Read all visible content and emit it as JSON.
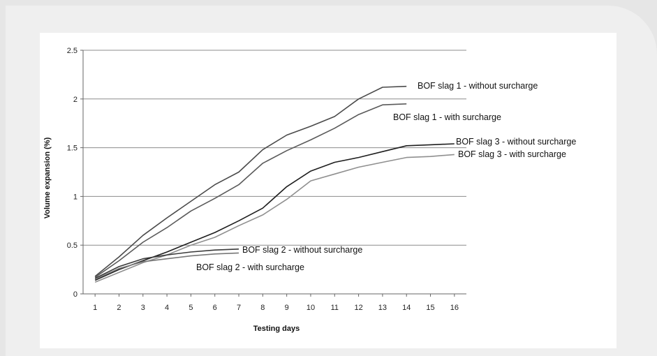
{
  "chart_data": {
    "type": "line",
    "title": "",
    "xlabel": "Testing days",
    "ylabel": "Volume expansion (%)",
    "xlim": [
      0.5,
      16.5
    ],
    "ylim": [
      0,
      2.5
    ],
    "x_ticks": [
      "1",
      "2",
      "3",
      "4",
      "5",
      "6",
      "7",
      "8",
      "9",
      "10",
      "11",
      "12",
      "13",
      "14",
      "15",
      "16"
    ],
    "y_ticks": [
      "0",
      "0.5",
      "1",
      "1.5",
      "2",
      "2.5"
    ],
    "grid": "horizontal",
    "series": [
      {
        "name": "BOF slag 1 - without surcharge",
        "color": "#4a4a4a",
        "x": [
          1,
          2,
          3,
          4,
          5,
          6,
          7,
          8,
          9,
          10,
          11,
          12,
          13,
          14
        ],
        "y": [
          0.18,
          0.38,
          0.6,
          0.78,
          0.95,
          1.12,
          1.25,
          1.48,
          1.63,
          1.72,
          1.82,
          2.0,
          2.12,
          2.13
        ]
      },
      {
        "name": "BOF slag 1 - with surcharge",
        "color": "#5a5a5a",
        "x": [
          1,
          2,
          3,
          4,
          5,
          6,
          7,
          8,
          9,
          10,
          11,
          12,
          13,
          14
        ],
        "y": [
          0.17,
          0.34,
          0.53,
          0.68,
          0.85,
          0.98,
          1.12,
          1.34,
          1.47,
          1.58,
          1.7,
          1.84,
          1.94,
          1.95
        ]
      },
      {
        "name": "BOF slag 3 - without surcharge",
        "color": "#1e1e1e",
        "x": [
          1,
          2,
          3,
          4,
          5,
          6,
          7,
          8,
          9,
          10,
          11,
          12,
          13,
          14,
          15,
          16
        ],
        "y": [
          0.14,
          0.25,
          0.34,
          0.43,
          0.53,
          0.63,
          0.75,
          0.88,
          1.1,
          1.26,
          1.35,
          1.4,
          1.46,
          1.52,
          1.53,
          1.54
        ]
      },
      {
        "name": "BOF slag 3 - with surcharge",
        "color": "#8f8f8f",
        "x": [
          1,
          2,
          3,
          4,
          5,
          6,
          7,
          8,
          9,
          10,
          11,
          12,
          13,
          14,
          15,
          16
        ],
        "y": [
          0.12,
          0.22,
          0.32,
          0.4,
          0.5,
          0.58,
          0.7,
          0.81,
          0.97,
          1.16,
          1.23,
          1.3,
          1.35,
          1.4,
          1.41,
          1.43
        ]
      },
      {
        "name": "BOF slag 2 - without surcharge",
        "color": "#3a3a3a",
        "x": [
          1,
          2,
          3,
          4,
          5,
          6,
          7
        ],
        "y": [
          0.16,
          0.28,
          0.36,
          0.4,
          0.43,
          0.45,
          0.46
        ]
      },
      {
        "name": "BOF slag 2 - with surcharge",
        "color": "#777777",
        "x": [
          1,
          2,
          3,
          4,
          5,
          6,
          7
        ],
        "y": [
          0.15,
          0.26,
          0.33,
          0.36,
          0.39,
          0.41,
          0.42
        ]
      }
    ]
  }
}
